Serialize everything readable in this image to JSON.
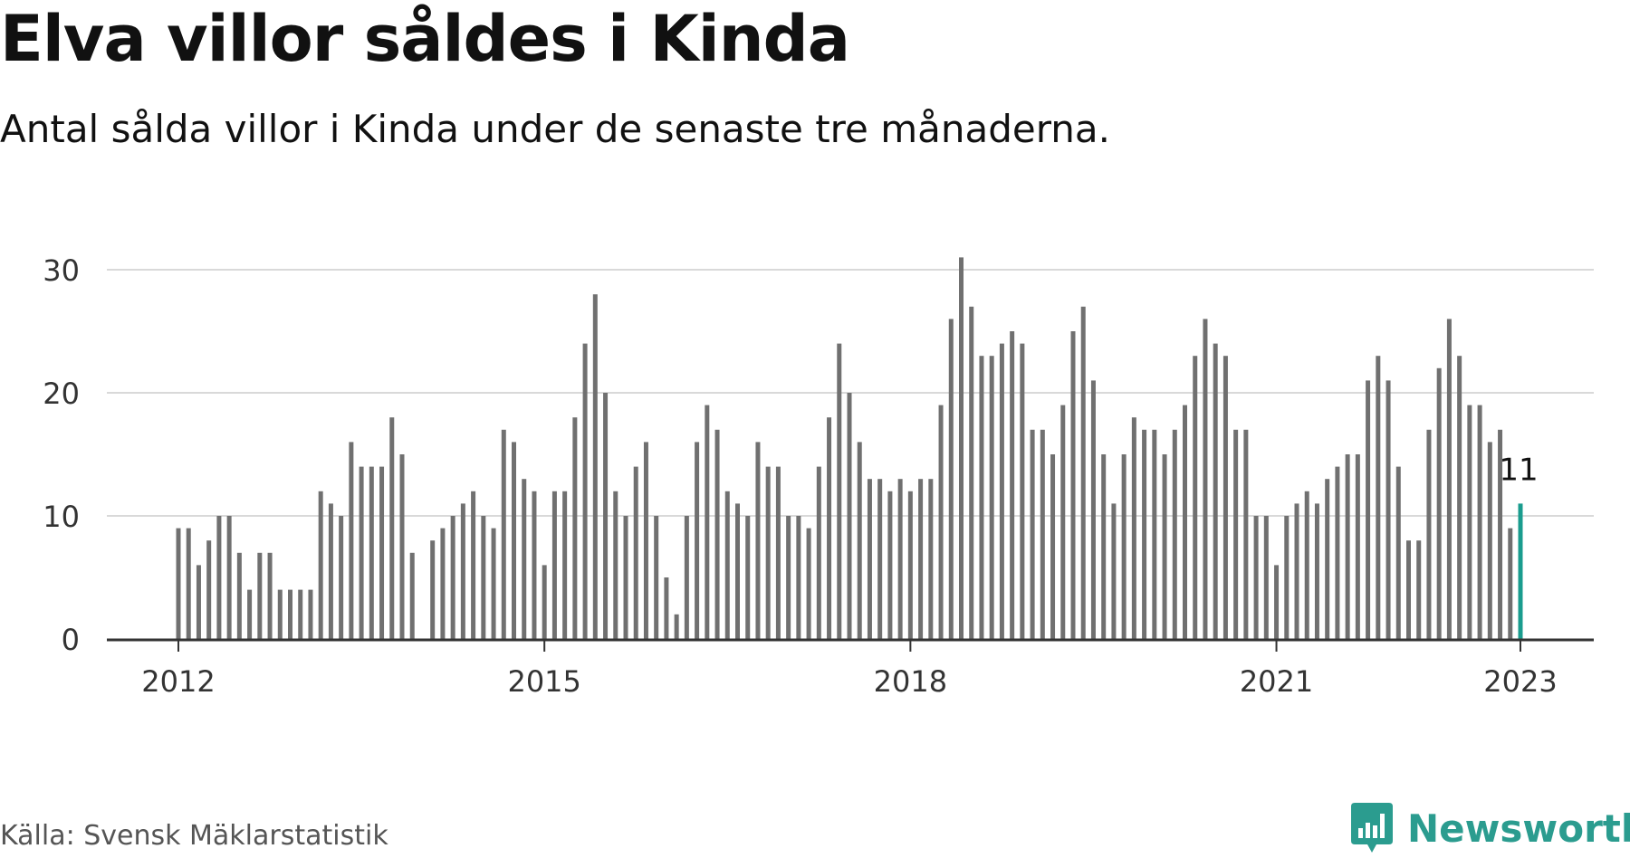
{
  "title": "Elva villor såldes i Kinda",
  "subtitle": "Antal sålda villor i Kinda under de senaste tre månaderna.",
  "source": "Källa: Svensk Mäklarstatistik",
  "brand": {
    "name": "Newsworthy",
    "icon": "newsworthy-logo-icon"
  },
  "colors": {
    "bar": "#707070",
    "highlight": "#1a9c8e",
    "grid": "#d9d9d9",
    "axis": "#333333",
    "brand": "#2b9c8f"
  },
  "chart_data": {
    "type": "bar",
    "x_start": "2012-01",
    "x_end": "2023-01",
    "x_ticks": [
      "2012",
      "2015",
      "2018",
      "2021",
      "2023"
    ],
    "y_ticks": [
      "0",
      "10",
      "20",
      "30"
    ],
    "ylim": [
      0,
      32
    ],
    "grid": true,
    "values": [
      9,
      9,
      6,
      8,
      10,
      10,
      7,
      4,
      7,
      7,
      4,
      4,
      4,
      4,
      12,
      11,
      10,
      16,
      14,
      14,
      14,
      18,
      15,
      7,
      0,
      8,
      9,
      10,
      11,
      12,
      10,
      9,
      17,
      16,
      13,
      12,
      6,
      12,
      12,
      18,
      24,
      28,
      20,
      12,
      10,
      14,
      16,
      10,
      5,
      2,
      10,
      16,
      19,
      17,
      12,
      11,
      10,
      16,
      14,
      14,
      10,
      10,
      9,
      14,
      18,
      24,
      20,
      16,
      13,
      13,
      12,
      13,
      12,
      13,
      13,
      19,
      26,
      31,
      27,
      23,
      23,
      24,
      25,
      24,
      17,
      17,
      15,
      19,
      25,
      27,
      21,
      15,
      11,
      15,
      18,
      17,
      17,
      15,
      17,
      19,
      23,
      26,
      24,
      23,
      17,
      17,
      10,
      10,
      6,
      10,
      11,
      12,
      11,
      13,
      14,
      15,
      15,
      21,
      23,
      21,
      14,
      8,
      8,
      17,
      22,
      26,
      23,
      19,
      19,
      16,
      17,
      9,
      11
    ],
    "highlight_label": "11"
  }
}
